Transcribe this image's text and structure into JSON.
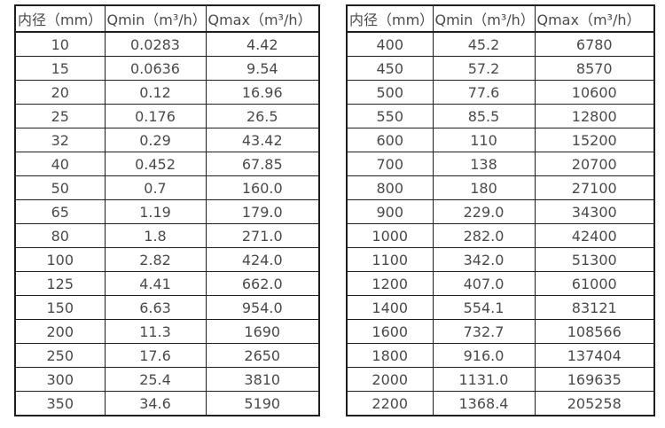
{
  "colors": {
    "background": "#ffffff",
    "border": "#1f1f1f",
    "text": "#4a4a4a"
  },
  "chart_data": [
    {
      "type": "table",
      "name": "flow-range-table-dn10-dn350",
      "headers": [
        "内径（mm）",
        "Qmin（m³/h）",
        "Qmax（m³/h）"
      ],
      "rows": [
        [
          "10",
          "0.0283",
          "4.42"
        ],
        [
          "15",
          "0.0636",
          "9.54"
        ],
        [
          "20",
          "0.12",
          "16.96"
        ],
        [
          "25",
          "0.176",
          "26.5"
        ],
        [
          "32",
          "0.29",
          "43.42"
        ],
        [
          "40",
          "0.452",
          "67.85"
        ],
        [
          "50",
          "0.7",
          "160.0"
        ],
        [
          "65",
          "1.19",
          "179.0"
        ],
        [
          "80",
          "1.8",
          "271.0"
        ],
        [
          "100",
          "2.82",
          "424.0"
        ],
        [
          "125",
          "4.41",
          "662.0"
        ],
        [
          "150",
          "6.63",
          "954.0"
        ],
        [
          "200",
          "11.3",
          "1690"
        ],
        [
          "250",
          "17.6",
          "2650"
        ],
        [
          "300",
          "25.4",
          "3810"
        ],
        [
          "350",
          "34.6",
          "5190"
        ]
      ]
    },
    {
      "type": "table",
      "name": "flow-range-table-dn400-dn2200",
      "headers": [
        "内径（mm）",
        "Qmin（m³/h）",
        "Qmax（m³/h）"
      ],
      "rows": [
        [
          "400",
          "45.2",
          "6780"
        ],
        [
          "450",
          "57.2",
          "8570"
        ],
        [
          "500",
          "77.6",
          "10600"
        ],
        [
          "550",
          "85.5",
          "12800"
        ],
        [
          "600",
          "110",
          "15200"
        ],
        [
          "700",
          "138",
          "20700"
        ],
        [
          "800",
          "180",
          "27100"
        ],
        [
          "900",
          "229.0",
          "34300"
        ],
        [
          "1000",
          "282.0",
          "42400"
        ],
        [
          "1100",
          "342.0",
          "51300"
        ],
        [
          "1200",
          "407.0",
          "61000"
        ],
        [
          "1400",
          "554.1",
          "83121"
        ],
        [
          "1600",
          "732.7",
          "108566"
        ],
        [
          "1800",
          "916.0",
          "137404"
        ],
        [
          "2000",
          "1131.0",
          "169635"
        ],
        [
          "2200",
          "1368.4",
          "205258"
        ]
      ]
    }
  ]
}
